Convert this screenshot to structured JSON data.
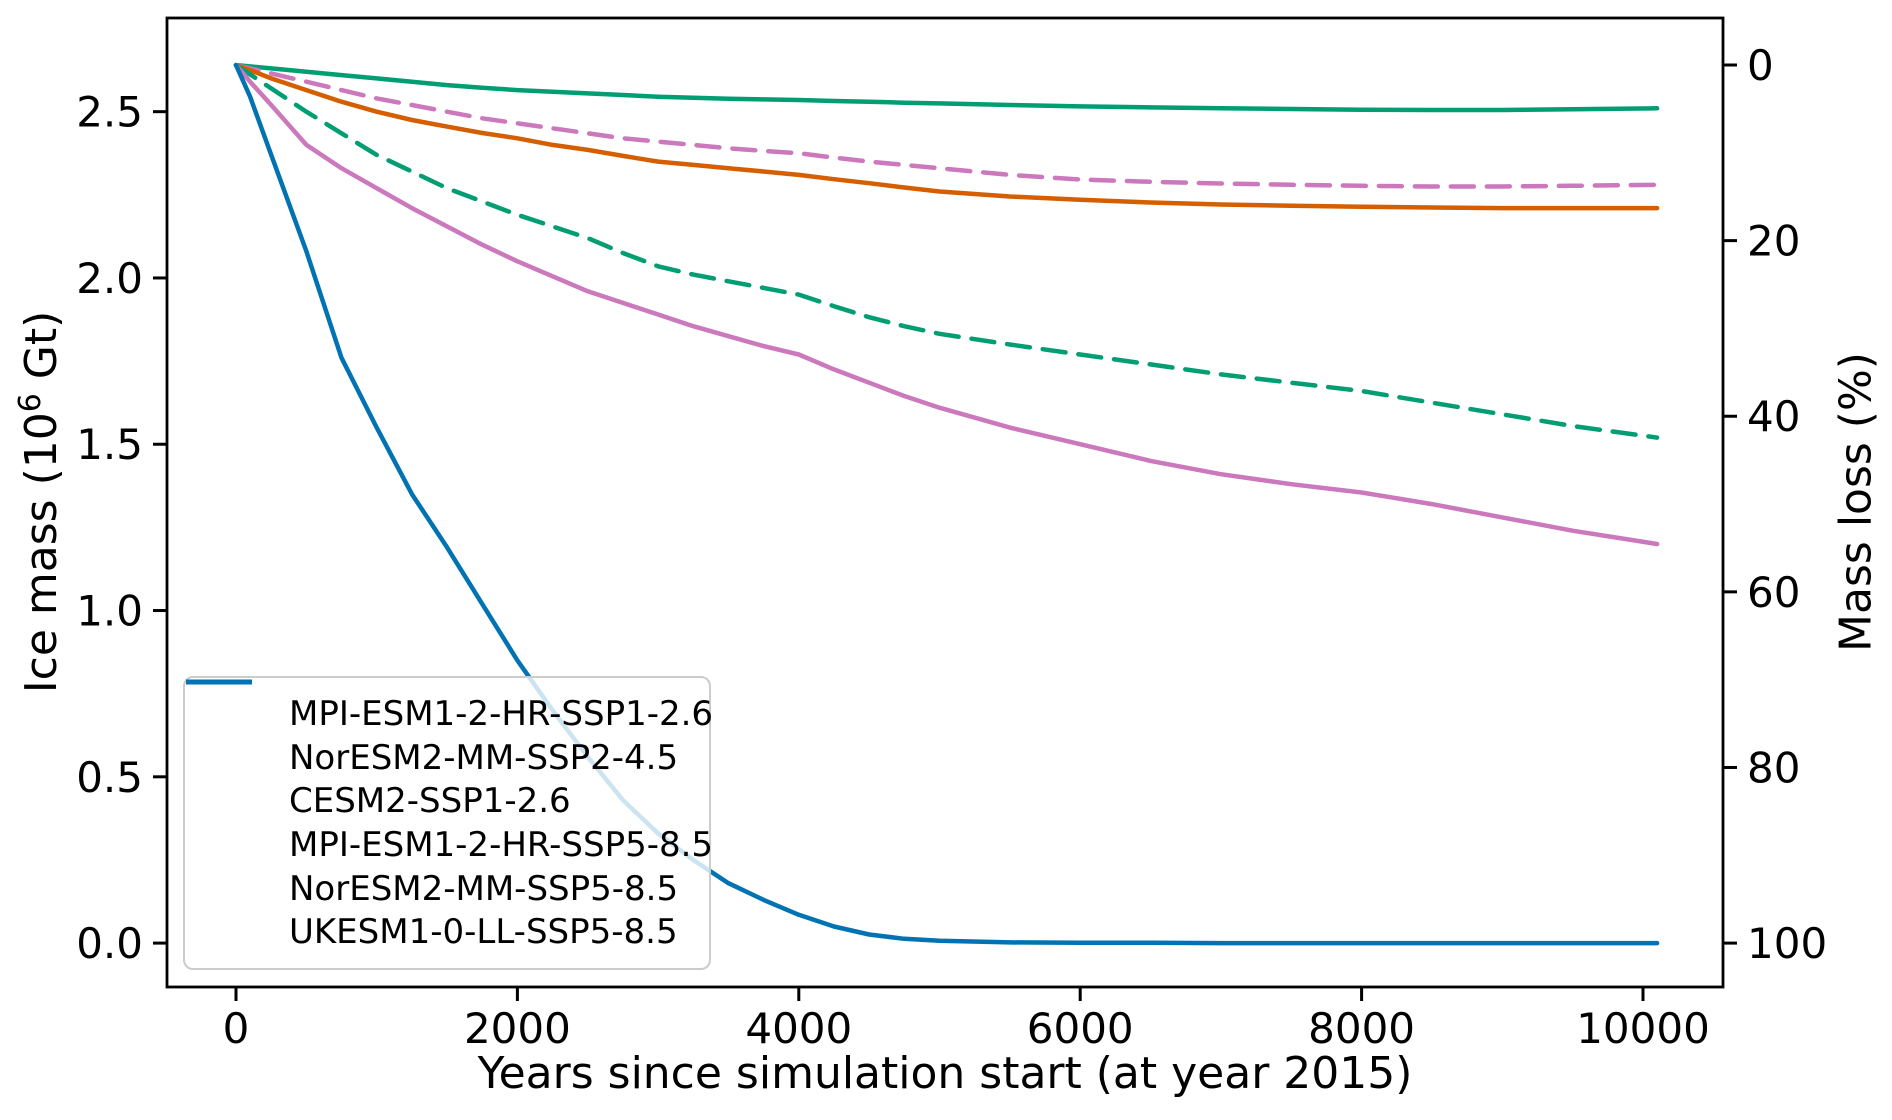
{
  "chart_data": {
    "type": "line",
    "title": "",
    "xlabel": "Years since simulation start (at year 2015)",
    "ylabel_left": {
      "pre": "Ice mass (10",
      "sup": "6",
      "post": " Gt)"
    },
    "ylabel_right": "Mass loss (%)",
    "xlim": [
      -500,
      10570
    ],
    "ylim_left": [
      -0.13,
      2.78
    ],
    "ylim_right_percent": [
      104,
      -9.5
    ],
    "grid": false,
    "legend_position": "lower left",
    "x_ticks": [
      {
        "label": "0",
        "value": 0
      },
      {
        "label": "2000",
        "value": 2000
      },
      {
        "label": "4000",
        "value": 4000
      },
      {
        "label": "6000",
        "value": 6000
      },
      {
        "label": "8000",
        "value": 8000
      },
      {
        "label": "10000",
        "value": 10000
      }
    ],
    "y_ticks_left": [
      {
        "label": "0.0",
        "value": 0.0
      },
      {
        "label": "0.5",
        "value": 0.5
      },
      {
        "label": "1.0",
        "value": 1.0
      },
      {
        "label": "1.5",
        "value": 1.5
      },
      {
        "label": "2.0",
        "value": 2.0
      },
      {
        "label": "2.5",
        "value": 2.5
      }
    ],
    "y_ticks_right": [
      {
        "label": "0",
        "value": 0
      },
      {
        "label": "20",
        "value": 20
      },
      {
        "label": "40",
        "value": 40
      },
      {
        "label": "60",
        "value": 60
      },
      {
        "label": "80",
        "value": 80
      },
      {
        "label": "100",
        "value": 100
      }
    ],
    "x": [
      0,
      100,
      250,
      500,
      750,
      1000,
      1250,
      1500,
      1750,
      2000,
      2250,
      2500,
      2750,
      3000,
      3250,
      3500,
      3750,
      4000,
      4250,
      4500,
      4750,
      5000,
      5500,
      6000,
      6500,
      7000,
      7500,
      8000,
      8500,
      9000,
      9500,
      10100
    ],
    "series": [
      {
        "name": "MPI-ESM1-2-HR-SSP1-2.6",
        "color": "#029e73",
        "dash": false,
        "values": [
          2.64,
          2.636,
          2.63,
          2.62,
          2.61,
          2.6,
          2.59,
          2.58,
          2.572,
          2.565,
          2.56,
          2.555,
          2.55,
          2.545,
          2.542,
          2.539,
          2.537,
          2.535,
          2.532,
          2.53,
          2.527,
          2.525,
          2.52,
          2.516,
          2.513,
          2.51,
          2.508,
          2.506,
          2.505,
          2.505,
          2.507,
          2.51
        ]
      },
      {
        "name": "NorESM2-MM-SSP2-4.5",
        "color": "#cc78bc",
        "dash": true,
        "values": [
          2.64,
          2.63,
          2.615,
          2.59,
          2.565,
          2.54,
          2.52,
          2.5,
          2.48,
          2.465,
          2.45,
          2.435,
          2.42,
          2.41,
          2.4,
          2.39,
          2.382,
          2.375,
          2.362,
          2.35,
          2.34,
          2.33,
          2.31,
          2.296,
          2.289,
          2.284,
          2.28,
          2.277,
          2.275,
          2.275,
          2.277,
          2.28
        ]
      },
      {
        "name": "CESM2-SSP1-2.6",
        "color": "#d55e00",
        "dash": false,
        "values": [
          2.64,
          2.625,
          2.6,
          2.565,
          2.53,
          2.5,
          2.475,
          2.455,
          2.436,
          2.42,
          2.4,
          2.385,
          2.367,
          2.35,
          2.34,
          2.33,
          2.32,
          2.31,
          2.297,
          2.285,
          2.272,
          2.26,
          2.245,
          2.235,
          2.227,
          2.221,
          2.217,
          2.214,
          2.212,
          2.21,
          2.21,
          2.21
        ]
      },
      {
        "name": "MPI-ESM1-2-HR-SSP5-8.5",
        "color": "#029e73",
        "dash": true,
        "values": [
          2.64,
          2.612,
          2.57,
          2.5,
          2.435,
          2.37,
          2.32,
          2.27,
          2.23,
          2.19,
          2.155,
          2.12,
          2.075,
          2.035,
          2.01,
          1.99,
          1.97,
          1.95,
          1.915,
          1.882,
          1.855,
          1.832,
          1.8,
          1.77,
          1.74,
          1.71,
          1.685,
          1.66,
          1.625,
          1.59,
          1.555,
          1.52
        ]
      },
      {
        "name": "NorESM2-MM-SSP5-8.5",
        "color": "#cc78bc",
        "dash": false,
        "values": [
          2.64,
          2.59,
          2.52,
          2.4,
          2.33,
          2.27,
          2.21,
          2.155,
          2.1,
          2.05,
          2.005,
          1.96,
          1.925,
          1.89,
          1.855,
          1.825,
          1.795,
          1.77,
          1.725,
          1.685,
          1.645,
          1.61,
          1.55,
          1.5,
          1.45,
          1.41,
          1.38,
          1.355,
          1.32,
          1.28,
          1.24,
          1.2
        ]
      },
      {
        "name": "UKESM1-0-LL-SSP5-8.5",
        "color": "#0173b2",
        "dash": false,
        "values": [
          2.64,
          2.545,
          2.37,
          2.08,
          1.76,
          1.55,
          1.35,
          1.19,
          1.02,
          0.85,
          0.7,
          0.56,
          0.43,
          0.33,
          0.25,
          0.18,
          0.13,
          0.085,
          0.05,
          0.026,
          0.013,
          0.007,
          0.002,
          0.001,
          0.001,
          0.0,
          0.0,
          0.0,
          0.0,
          0.0,
          0.0,
          0.0
        ]
      }
    ]
  }
}
